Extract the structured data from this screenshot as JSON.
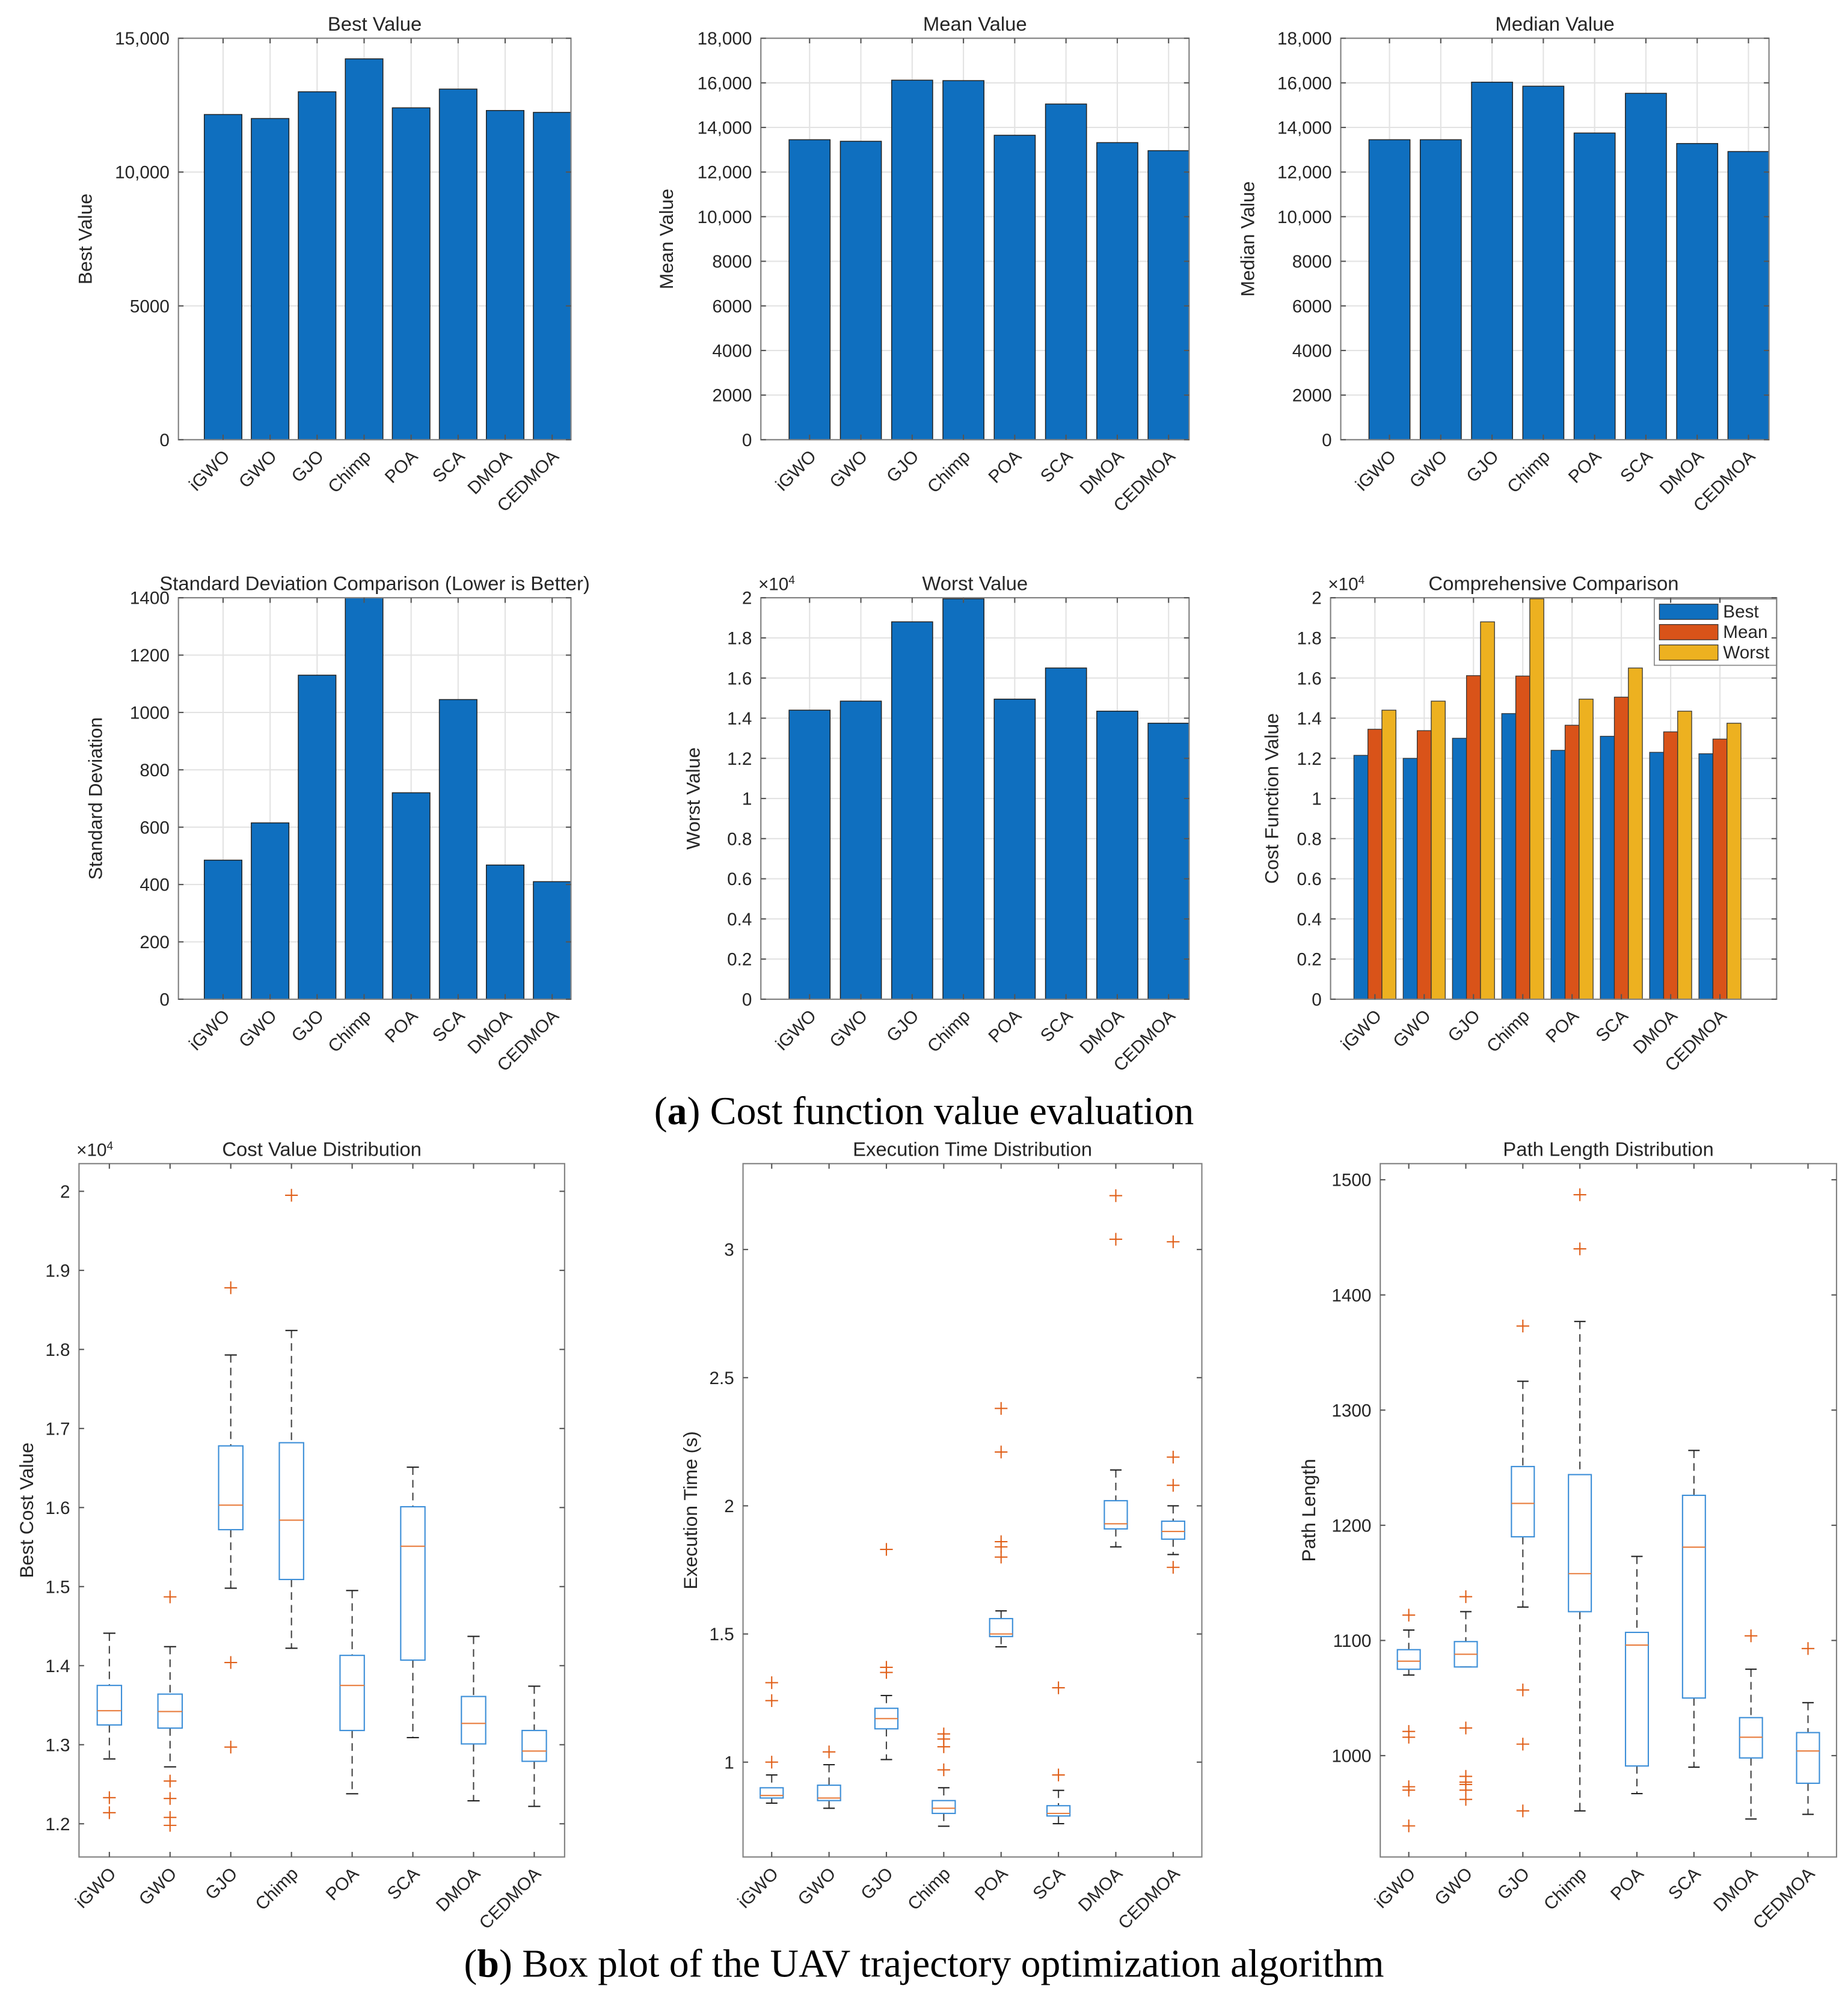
{
  "captions": {
    "a_letter": "a",
    "a_text": ") Cost function value evaluation",
    "b_letter": "b",
    "b_text": ") Box plot of the UAV trajectory optimization algorithm",
    "open_paren": "("
  },
  "colors": {
    "best": "#0f6fbf",
    "mean": "#d95319",
    "worst": "#edb120",
    "box": "#3d8fd8",
    "median": "#e87d3e",
    "outlier": "#e0601a",
    "whisker": "#444444"
  },
  "chart_data": [
    {
      "type": "bar",
      "title": "Best Value",
      "xlabel": "",
      "ylabel": "Best Value",
      "categories": [
        "iGWO",
        "GWO",
        "GJO",
        "Chimp",
        "POA",
        "SCA",
        "DMOA",
        "CEDMOA"
      ],
      "values": [
        12150,
        12000,
        13000,
        14230,
        12400,
        13100,
        12300,
        12230
      ],
      "ylim": [
        0,
        15000
      ],
      "xlim": [
        0.05,
        8.4
      ],
      "yticks": [
        0,
        5000,
        10000,
        15000
      ],
      "ytick_labels": [
        "0",
        "5000",
        "10,000",
        "15,000"
      ],
      "grid": true
    },
    {
      "type": "bar",
      "title": "Mean Value",
      "xlabel": "",
      "ylabel": "Mean Value",
      "categories": [
        "iGWO",
        "GWO",
        "GJO",
        "Chimp",
        "POA",
        "SCA",
        "DMOA",
        "CEDMOA"
      ],
      "values": [
        13450,
        13380,
        16120,
        16100,
        13650,
        15050,
        13320,
        12960
      ],
      "ylim": [
        0,
        18000
      ],
      "xlim": [
        0.05,
        8.4
      ],
      "yticks": [
        0,
        2000,
        4000,
        6000,
        8000,
        10000,
        12000,
        14000,
        16000,
        18000
      ],
      "ytick_labels": [
        "0",
        "2000",
        "4000",
        "6000",
        "8000",
        "10,000",
        "12,000",
        "14,000",
        "16,000",
        "18,000"
      ],
      "grid": true
    },
    {
      "type": "bar",
      "title": "Median Value",
      "xlabel": "",
      "ylabel": "Median Value",
      "categories": [
        "iGWO",
        "GWO",
        "GJO",
        "Chimp",
        "POA",
        "SCA",
        "DMOA",
        "CEDMOA"
      ],
      "values": [
        13450,
        13450,
        16030,
        15850,
        13750,
        15530,
        13280,
        12920
      ],
      "ylim": [
        0,
        18000
      ],
      "xlim": [
        0.05,
        8.4
      ],
      "yticks": [
        0,
        2000,
        4000,
        6000,
        8000,
        10000,
        12000,
        14000,
        16000,
        18000
      ],
      "ytick_labels": [
        "0",
        "2000",
        "4000",
        "6000",
        "8000",
        "10,000",
        "12,000",
        "14,000",
        "16,000",
        "18,000"
      ],
      "grid": true
    },
    {
      "type": "bar",
      "title": "Standard Deviation Comparison (Lower is Better)",
      "xlabel": "",
      "ylabel": "Standard Deviation",
      "categories": [
        "iGWO",
        "GWO",
        "GJO",
        "Chimp",
        "POA",
        "SCA",
        "DMOA",
        "CEDMOA"
      ],
      "values": [
        485,
        615,
        1130,
        1400,
        720,
        1045,
        468,
        410
      ],
      "ylim": [
        0,
        1400
      ],
      "xlim": [
        0.05,
        8.4
      ],
      "yticks": [
        0,
        200,
        400,
        600,
        800,
        1000,
        1200,
        1400
      ],
      "ytick_labels": [
        "0",
        "200",
        "400",
        "600",
        "800",
        "1000",
        "1200",
        "1400"
      ],
      "grid": true
    },
    {
      "type": "bar",
      "title": "Worst Value",
      "xlabel": "",
      "ylabel": "Worst Value",
      "exponent": "×10",
      "exponent_power": "4",
      "categories": [
        "iGWO",
        "GWO",
        "GJO",
        "Chimp",
        "POA",
        "SCA",
        "DMOA",
        "CEDMOA"
      ],
      "values": [
        14400,
        14850,
        18800,
        19950,
        14950,
        16500,
        14350,
        13750
      ],
      "ylim": [
        0,
        20000
      ],
      "xlim": [
        0.05,
        8.4
      ],
      "yticks": [
        0,
        2000,
        4000,
        6000,
        8000,
        10000,
        12000,
        14000,
        16000,
        18000,
        20000
      ],
      "ytick_labels": [
        "0",
        "0.2",
        "0.4",
        "0.6",
        "0.8",
        "1",
        "1.2",
        "1.4",
        "1.6",
        "1.8",
        "2"
      ],
      "grid": true
    },
    {
      "type": "bar",
      "title": "Comprehensive Comparison",
      "xlabel": "",
      "ylabel": "Cost Function Value",
      "exponent": "×10",
      "exponent_power": "4",
      "categories": [
        "iGWO",
        "GWO",
        "GJO",
        "Chimp",
        "POA",
        "SCA",
        "DMOA",
        "CEDMOA"
      ],
      "series": [
        {
          "name": "Best",
          "color": "#0f6fbf",
          "values": [
            12150,
            12000,
            13000,
            14230,
            12400,
            13100,
            12300,
            12230
          ]
        },
        {
          "name": "Mean",
          "color": "#d95319",
          "values": [
            13450,
            13380,
            16120,
            16100,
            13650,
            15050,
            13320,
            12960
          ]
        },
        {
          "name": "Worst",
          "color": "#edb120",
          "values": [
            14400,
            14850,
            18800,
            19950,
            14950,
            16500,
            14350,
            13750
          ]
        }
      ],
      "ylim": [
        0,
        20000
      ],
      "xlim": [
        0.1,
        9.15
      ],
      "legend": "top-right",
      "yticks": [
        0,
        2000,
        4000,
        6000,
        8000,
        10000,
        12000,
        14000,
        16000,
        18000,
        20000
      ],
      "ytick_labels": [
        "0",
        "0.2",
        "0.4",
        "0.6",
        "0.8",
        "1",
        "1.2",
        "1.4",
        "1.6",
        "1.8",
        "2"
      ],
      "grid": true
    },
    {
      "type": "box",
      "title": "Cost Value Distribution",
      "xlabel": "",
      "ylabel": "Best Cost Value",
      "exponent": "×10",
      "exponent_power": "4",
      "categories": [
        "iGWO",
        "GWO",
        "GJO",
        "Chimp",
        "POA",
        "SCA",
        "DMOA",
        "CEDMOA"
      ],
      "ylim": [
        11580,
        20350
      ],
      "yticks": [
        12000,
        13000,
        14000,
        15000,
        16000,
        17000,
        18000,
        19000,
        20000
      ],
      "ytick_labels": [
        "1.2",
        "1.3",
        "1.4",
        "1.5",
        "1.6",
        "1.7",
        "1.8",
        "1.9",
        "2"
      ],
      "grid": false,
      "boxes": [
        {
          "low": 12820,
          "q1": 13250,
          "median": 13430,
          "q3": 13750,
          "high": 14410,
          "outliers": [
            12330,
            12140
          ]
        },
        {
          "low": 12720,
          "q1": 13210,
          "median": 13420,
          "q3": 13640,
          "high": 14240,
          "outliers": [
            14870,
            12540,
            12320,
            12080,
            11980
          ]
        },
        {
          "low": 14980,
          "q1": 15720,
          "median": 16030,
          "q3": 16780,
          "high": 17930,
          "outliers": [
            18780,
            14040,
            12970
          ]
        },
        {
          "low": 14220,
          "q1": 15090,
          "median": 15840,
          "q3": 16820,
          "high": 18240,
          "outliers": [
            19950
          ]
        },
        {
          "low": 12380,
          "q1": 13180,
          "median": 13750,
          "q3": 14130,
          "high": 14950,
          "outliers": []
        },
        {
          "low": 13090,
          "q1": 14070,
          "median": 15510,
          "q3": 16010,
          "high": 16510,
          "outliers": []
        },
        {
          "low": 12290,
          "q1": 13010,
          "median": 13270,
          "q3": 13610,
          "high": 14370,
          "outliers": []
        },
        {
          "low": 12220,
          "q1": 12790,
          "median": 12920,
          "q3": 13180,
          "high": 13740,
          "outliers": []
        }
      ]
    },
    {
      "type": "box",
      "title": "Execution Time Distribution",
      "xlabel": "",
      "ylabel": "Execution Time (s)",
      "categories": [
        "iGWO",
        "GWO",
        "GJO",
        "Chimp",
        "POA",
        "SCA",
        "DMOA",
        "CEDMOA"
      ],
      "ylim": [
        0.63,
        3.335
      ],
      "yticks": [
        1,
        1.5,
        2,
        2.5,
        3
      ],
      "ytick_labels": [
        "1",
        "1.5",
        "2",
        "2.5",
        "3"
      ],
      "grid": false,
      "boxes": [
        {
          "low": 0.84,
          "q1": 0.86,
          "median": 0.87,
          "q3": 0.9,
          "high": 0.95,
          "outliers": [
            1.31,
            1.24,
            1.0
          ]
        },
        {
          "low": 0.82,
          "q1": 0.85,
          "median": 0.86,
          "q3": 0.91,
          "high": 0.99,
          "outliers": [
            1.04
          ]
        },
        {
          "low": 1.01,
          "q1": 1.13,
          "median": 1.17,
          "q3": 1.21,
          "high": 1.26,
          "outliers": [
            1.83,
            1.37,
            1.35
          ]
        },
        {
          "low": 0.75,
          "q1": 0.8,
          "median": 0.82,
          "q3": 0.85,
          "high": 0.9,
          "outliers": [
            1.11,
            1.09,
            1.06,
            0.97
          ]
        },
        {
          "low": 1.45,
          "q1": 1.49,
          "median": 1.5,
          "q3": 1.56,
          "high": 1.59,
          "outliers": [
            2.38,
            2.21,
            1.86,
            1.84,
            1.8
          ]
        },
        {
          "low": 0.76,
          "q1": 0.79,
          "median": 0.8,
          "q3": 0.83,
          "high": 0.89,
          "outliers": [
            1.29,
            0.95
          ]
        },
        {
          "low": 1.84,
          "q1": 1.91,
          "median": 1.93,
          "q3": 2.02,
          "high": 2.14,
          "outliers": [
            3.21,
            3.04
          ]
        },
        {
          "low": 1.81,
          "q1": 1.87,
          "median": 1.9,
          "q3": 1.94,
          "high": 2.0,
          "outliers": [
            3.03,
            2.19,
            2.08,
            1.76
          ]
        }
      ]
    },
    {
      "type": "box",
      "title": "Path Length Distribution",
      "xlabel": "",
      "ylabel": "Path Length",
      "categories": [
        "iGWO",
        "GWO",
        "GJO",
        "Chimp",
        "POA",
        "SCA",
        "DMOA",
        "CEDMOA"
      ],
      "ylim": [
        912,
        1514
      ],
      "yticks": [
        1000,
        1100,
        1200,
        1300,
        1400,
        1500
      ],
      "ytick_labels": [
        "1000",
        "1100",
        "1200",
        "1300",
        "1400",
        "1500"
      ],
      "grid": false,
      "boxes": [
        {
          "low": 1070,
          "q1": 1075,
          "median": 1082,
          "q3": 1092,
          "high": 1109,
          "outliers": [
            1122,
            1021,
            1016,
            973,
            970,
            939
          ]
        },
        {
          "low": 1077,
          "q1": 1077,
          "median": 1088,
          "q3": 1099,
          "high": 1125,
          "outliers": [
            1138,
            1024,
            982,
            977,
            975,
            970,
            962
          ]
        },
        {
          "low": 1129,
          "q1": 1190,
          "median": 1219,
          "q3": 1251,
          "high": 1325,
          "outliers": [
            1373,
            1057,
            1010,
            952
          ]
        },
        {
          "low": 952,
          "q1": 1125,
          "median": 1158,
          "q3": 1244,
          "high": 1377,
          "outliers": [
            1487,
            1440
          ]
        },
        {
          "low": 967,
          "q1": 991,
          "median": 1096,
          "q3": 1107,
          "high": 1173,
          "outliers": []
        },
        {
          "low": 990,
          "q1": 1050,
          "median": 1181,
          "q3": 1226,
          "high": 1265,
          "outliers": []
        },
        {
          "low": 945,
          "q1": 998,
          "median": 1016,
          "q3": 1033,
          "high": 1075,
          "outliers": [
            1104
          ]
        },
        {
          "low": 949,
          "q1": 976,
          "median": 1004,
          "q3": 1020,
          "high": 1046,
          "outliers": [
            1093
          ]
        }
      ]
    }
  ]
}
